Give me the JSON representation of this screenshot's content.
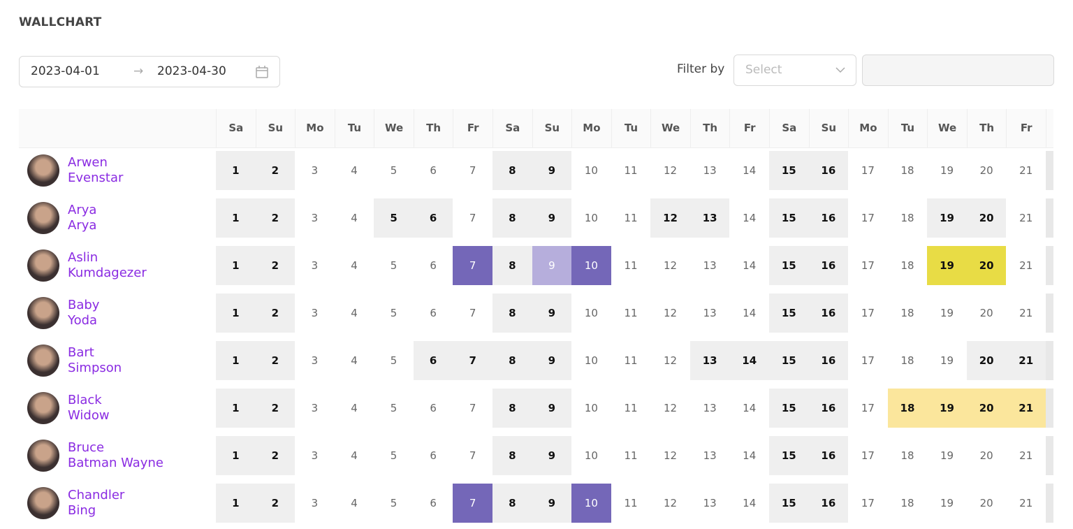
{
  "header": {
    "title": "WALLCHART"
  },
  "date_range": {
    "start": "2023-04-01",
    "end": "2023-04-30"
  },
  "filter": {
    "label": "Filter by",
    "placeholder": "Select"
  },
  "table": {
    "weekdays": [
      "Sa",
      "Su",
      "Mo",
      "Tu",
      "We",
      "Th",
      "Fr",
      "Sa",
      "Su",
      "Mo",
      "Tu",
      "We",
      "Th",
      "Fr",
      "Sa",
      "Su",
      "Mo",
      "Tu",
      "We",
      "Th",
      "Fr"
    ],
    "days": [
      1,
      2,
      3,
      4,
      5,
      6,
      7,
      8,
      9,
      10,
      11,
      12,
      13,
      14,
      15,
      16,
      17,
      18,
      19,
      20,
      21
    ],
    "rows": [
      {
        "first": "Arwen",
        "last": "Evenstar",
        "cells": [
          "off",
          "off",
          "work",
          "work",
          "work",
          "work",
          "work",
          "off",
          "off",
          "work",
          "work",
          "work",
          "work",
          "work",
          "off",
          "off",
          "work",
          "work",
          "work",
          "work",
          "work"
        ]
      },
      {
        "first": "Arya",
        "last": "Arya",
        "cells": [
          "off",
          "off",
          "work",
          "work",
          "off",
          "off",
          "work",
          "off",
          "off",
          "work",
          "work",
          "off",
          "off",
          "work",
          "off",
          "off",
          "work",
          "work",
          "off",
          "off",
          "work"
        ]
      },
      {
        "first": "Aslin",
        "last": "Kumdagezer",
        "cells": [
          "off",
          "off",
          "work",
          "work",
          "work",
          "work",
          "leave",
          "off",
          "pending",
          "leave",
          "work",
          "work",
          "work",
          "work",
          "off",
          "off",
          "work",
          "work",
          "holiday",
          "holiday",
          "work"
        ]
      },
      {
        "first": "Baby",
        "last": "Yoda",
        "cells": [
          "off",
          "off",
          "work",
          "work",
          "work",
          "work",
          "work",
          "off",
          "off",
          "work",
          "work",
          "work",
          "work",
          "work",
          "off",
          "off",
          "work",
          "work",
          "work",
          "work",
          "work"
        ]
      },
      {
        "first": "Bart",
        "last": "Simpson",
        "cells": [
          "off",
          "off",
          "work",
          "work",
          "work",
          "off",
          "off",
          "off",
          "off",
          "work",
          "work",
          "work",
          "off",
          "off",
          "off",
          "off",
          "work",
          "work",
          "work",
          "off",
          "off"
        ]
      },
      {
        "first": "Black",
        "last": "Widow",
        "cells": [
          "off",
          "off",
          "work",
          "work",
          "work",
          "work",
          "work",
          "off",
          "off",
          "work",
          "work",
          "work",
          "work",
          "work",
          "off",
          "off",
          "work",
          "request",
          "request",
          "request",
          "request"
        ]
      },
      {
        "first": "Bruce",
        "last": "Batman Wayne",
        "cells": [
          "off",
          "off",
          "work",
          "work",
          "work",
          "work",
          "work",
          "off",
          "off",
          "work",
          "work",
          "work",
          "work",
          "work",
          "off",
          "off",
          "work",
          "work",
          "work",
          "work",
          "work"
        ]
      },
      {
        "first": "Chandler",
        "last": "Bing",
        "cells": [
          "off",
          "off",
          "work",
          "work",
          "work",
          "work",
          "leave",
          "off",
          "off",
          "leave",
          "work",
          "work",
          "work",
          "work",
          "off",
          "off",
          "work",
          "work",
          "work",
          "work",
          "work"
        ]
      }
    ]
  }
}
